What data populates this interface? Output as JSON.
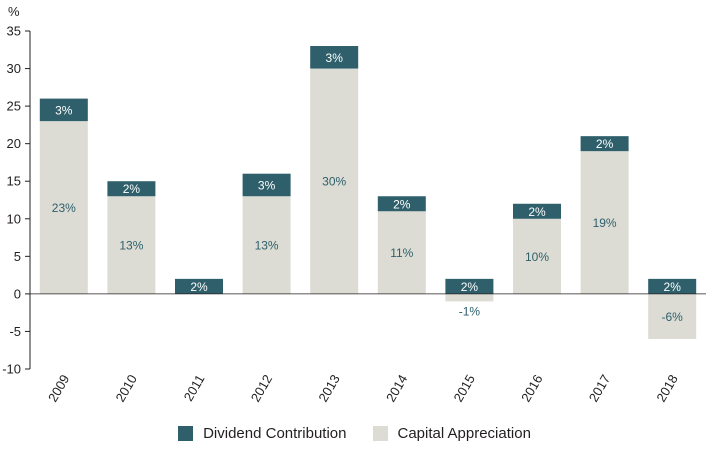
{
  "chart_data": {
    "type": "bar",
    "stacked": true,
    "y_unit": "%",
    "categories": [
      "2009",
      "2010",
      "2011",
      "2012",
      "2013",
      "2014",
      "2015",
      "2016",
      "2017",
      "2018"
    ],
    "series": [
      {
        "name": "Capital Appreciation",
        "color": "#dcdcd4",
        "values": [
          23,
          13,
          0,
          13,
          30,
          11,
          -1,
          10,
          19,
          -6
        ],
        "labels": [
          "23%",
          "13%",
          "",
          "13%",
          "30%",
          "11%",
          "-1%",
          "10%",
          "19%",
          "-6%"
        ]
      },
      {
        "name": "Dividend Contribution",
        "color": "#2e5f6b",
        "values": [
          3,
          2,
          2,
          3,
          3,
          2,
          2,
          2,
          2,
          2
        ],
        "labels": [
          "3%",
          "2%",
          "2%",
          "3%",
          "3%",
          "2%",
          "2%",
          "2%",
          "2%",
          "2%"
        ]
      }
    ],
    "ylim": [
      -10,
      35
    ],
    "yticks": [
      35,
      30,
      25,
      20,
      15,
      10,
      5,
      0,
      -5,
      -10
    ],
    "legend_position": "bottom"
  }
}
